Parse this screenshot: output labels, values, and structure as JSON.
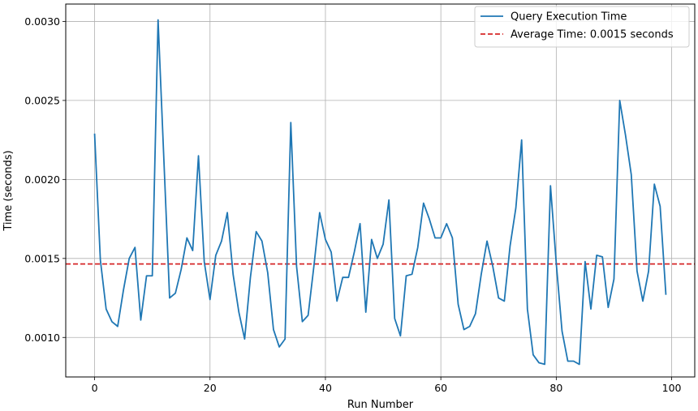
{
  "chart_data": {
    "type": "line",
    "xlabel": "Run Number",
    "ylabel": "Time (seconds)",
    "xlim": [
      -5,
      104
    ],
    "ylim": [
      0.00075,
      0.00311
    ],
    "xticks": [
      0,
      20,
      40,
      60,
      80,
      100
    ],
    "yticks": [
      0.001,
      0.0015,
      0.002,
      0.0025,
      0.003
    ],
    "xtick_labels": [
      "0",
      "20",
      "40",
      "60",
      "80",
      "100"
    ],
    "ytick_labels": [
      "0.0010",
      "0.0015",
      "0.0020",
      "0.0025",
      "0.0030"
    ],
    "grid": true,
    "legend_position": "top-right",
    "series": [
      {
        "name": "Query Execution Time",
        "color": "#1f77b4",
        "style": "solid",
        "x": [
          0,
          1,
          2,
          3,
          4,
          5,
          6,
          7,
          8,
          9,
          10,
          11,
          12,
          13,
          14,
          15,
          16,
          17,
          18,
          19,
          20,
          21,
          22,
          23,
          24,
          25,
          26,
          27,
          28,
          29,
          30,
          31,
          32,
          33,
          34,
          35,
          36,
          37,
          38,
          39,
          40,
          41,
          42,
          43,
          44,
          45,
          46,
          47,
          48,
          49,
          50,
          51,
          52,
          53,
          54,
          55,
          56,
          57,
          58,
          59,
          60,
          61,
          62,
          63,
          64,
          65,
          66,
          67,
          68,
          69,
          70,
          71,
          72,
          73,
          74,
          75,
          76,
          77,
          78,
          79,
          80,
          81,
          82,
          83,
          84,
          85,
          86,
          87,
          88,
          89,
          90,
          91,
          92,
          93,
          94,
          95,
          96,
          97,
          98,
          99
        ],
        "values": [
          0.00229,
          0.00149,
          0.00118,
          0.0011,
          0.00107,
          0.0013,
          0.0015,
          0.00157,
          0.00111,
          0.00139,
          0.00139,
          0.00301,
          0.00213,
          0.00125,
          0.00128,
          0.00143,
          0.00163,
          0.00155,
          0.00215,
          0.00148,
          0.00124,
          0.00152,
          0.00161,
          0.00179,
          0.0014,
          0.00116,
          0.00099,
          0.00138,
          0.00167,
          0.00161,
          0.00141,
          0.00105,
          0.00094,
          0.00099,
          0.00236,
          0.00145,
          0.0011,
          0.00114,
          0.00145,
          0.00179,
          0.00162,
          0.00154,
          0.00123,
          0.00138,
          0.00138,
          0.00154,
          0.00172,
          0.00116,
          0.00162,
          0.0015,
          0.00159,
          0.00187,
          0.00112,
          0.00101,
          0.00139,
          0.0014,
          0.00157,
          0.00185,
          0.00175,
          0.00163,
          0.00163,
          0.00172,
          0.00163,
          0.00121,
          0.00105,
          0.00107,
          0.00115,
          0.0014,
          0.00161,
          0.00145,
          0.00125,
          0.00123,
          0.00158,
          0.00182,
          0.00225,
          0.00118,
          0.00089,
          0.00084,
          0.00083,
          0.00196,
          0.00147,
          0.00104,
          0.00085,
          0.00085,
          0.00083,
          0.00148,
          0.00118,
          0.00152,
          0.00151,
          0.00119,
          0.00137,
          0.0025,
          0.00228,
          0.00203,
          0.00142,
          0.00123,
          0.00142,
          0.00197,
          0.00183,
          0.00127
        ]
      },
      {
        "name": "Average Time: 0.0015 seconds",
        "color": "#d62728",
        "style": "dashed",
        "constant": 0.001465
      }
    ]
  }
}
